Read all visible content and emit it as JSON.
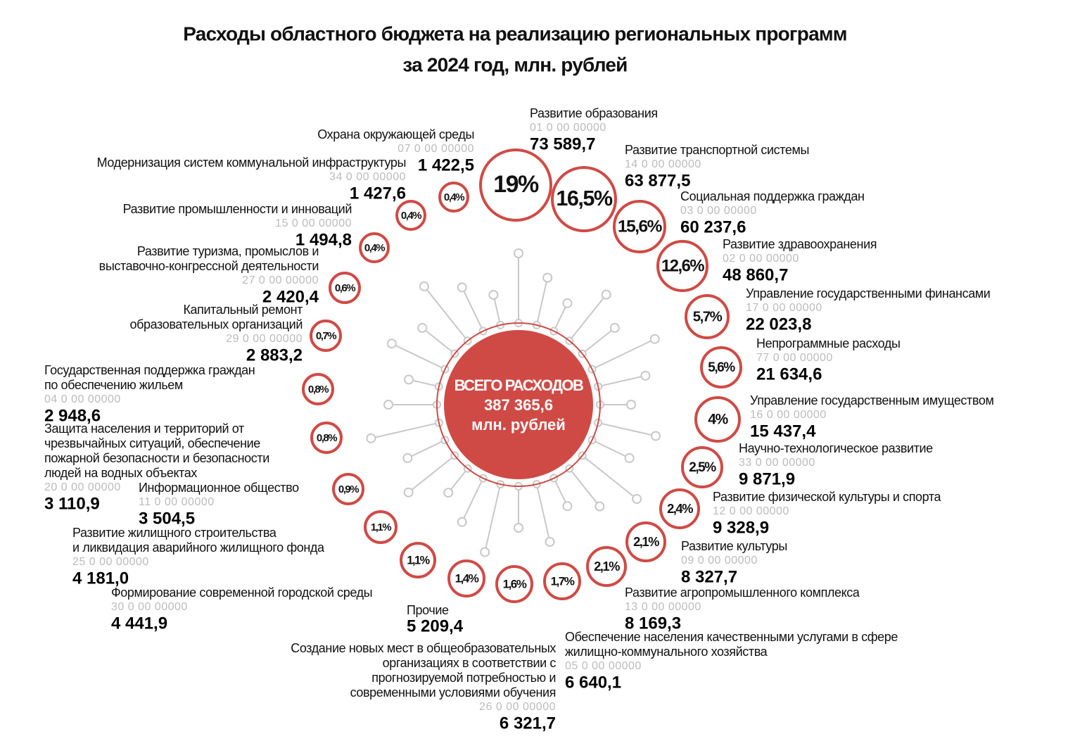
{
  "title": [
    "Расходы областного бюджета на реализацию региональных программ",
    "за 2024 год, млн. рублей"
  ],
  "total": {
    "label": "ВСЕГО РАСХОДОВ",
    "amount": "387 365,6",
    "unit": "млн. рублей"
  },
  "programs": [
    {
      "name": [
        "Развитие образования"
      ],
      "code": "01 0 00 00000",
      "amount": "73 589,7",
      "percent": "19%"
    },
    {
      "name": [
        "Развитие транспортной системы"
      ],
      "code": "14 0 00 00000",
      "amount": "63 877,5",
      "percent": "16,5%"
    },
    {
      "name": [
        "Социальная поддержка граждан"
      ],
      "code": "03 0 00 00000",
      "amount": "60 237,6",
      "percent": "15,6%"
    },
    {
      "name": [
        "Развитие здравоохранения"
      ],
      "code": "02 0 00 00000",
      "amount": "48 860,7",
      "percent": "12,6%"
    },
    {
      "name": [
        "Управление государственными финансами"
      ],
      "code": "17 0 00 00000",
      "amount": "22 023,8",
      "percent": "5,7%"
    },
    {
      "name": [
        "Непрограммные расходы"
      ],
      "code": "77 0 00 00000",
      "amount": "21 634,6",
      "percent": "5,6%"
    },
    {
      "name": [
        "Управление государственным имуществом"
      ],
      "code": "16 0 00 00000",
      "amount": "15 437,4",
      "percent": "4%"
    },
    {
      "name": [
        "Научно-технологическое развитие"
      ],
      "code": "33 0 00 00000",
      "amount": "9 871,9",
      "percent": "2,5%"
    },
    {
      "name": [
        "Развитие физической культуры и спорта"
      ],
      "code": "12 0 00 00000",
      "amount": "9 328,9",
      "percent": "2,4%"
    },
    {
      "name": [
        "Развитие культуры"
      ],
      "code": "09 0 00 00000",
      "amount": "8 327,7",
      "percent": "2,1%"
    },
    {
      "name": [
        "Развитие агропромышленного комплекса"
      ],
      "code": "13 0 00 00000",
      "amount": "8 169,3",
      "percent": "2,1%"
    },
    {
      "name": [
        "Обеспечение населения  качественными услугами в сфере",
        "жилищно-коммунального хозяйства"
      ],
      "code": "05 0 00 00000",
      "amount": "6 640,1",
      "percent": "1,7%"
    },
    {
      "name": [
        "Создание новых мест в общеобразовательных",
        "организациях  в соответствии с",
        "прогнозируемой потребностью и",
        "современными условиями обучения"
      ],
      "code": "26 0 00 00000",
      "amount": "6 321,7",
      "percent": "1,6%"
    },
    {
      "name": [
        "Прочие"
      ],
      "amount": "5 209,4",
      "percent": "1,4%"
    },
    {
      "name": [
        "Формирование современной городской среды"
      ],
      "code": "30 0 00 00000",
      "amount": "4 441,9",
      "percent": "1,1%"
    },
    {
      "name": [
        "Развитие жилищного строительства",
        "и ликвидация аварийного жилищного фонда"
      ],
      "code": "25 0 00 00000",
      "amount": "4 181,0",
      "percent": "1,1%"
    },
    {
      "name": [
        "Информационное общество"
      ],
      "code": "11 0 00 00000",
      "amount": "3 504,5",
      "percent": "0,9%"
    },
    {
      "name": [
        "Защита населения и территорий от",
        "чрезвычайных ситуаций, обеспечение",
        "пожарной безопасности и безопасности",
        "людей на водных объектах"
      ],
      "code": "20 0 00 00000",
      "amount": "3 110,9",
      "percent": "0,8%"
    },
    {
      "name": [
        "Государственная поддержка граждан",
        "по обеспечению жильем"
      ],
      "code": "04 0 00 00000",
      "amount": "2 948,6",
      "percent": "0,8%"
    },
    {
      "name": [
        "Капитальный ремонт",
        "образовательных организаций"
      ],
      "code": "29 0 00 00000",
      "amount": "2 883,2",
      "percent": "0,7%"
    },
    {
      "name": [
        "Развитие туризма, промыслов и",
        "выставочно-конгрессной деятельности"
      ],
      "code": "27 0 00 00000",
      "amount": "2 420,4",
      "percent": "0,6%"
    },
    {
      "name": [
        "Развитие промышленности и инноваций"
      ],
      "code": "15 0 00 00000",
      "amount": "1 494,8",
      "percent": "0,4%"
    },
    {
      "name": [
        "Модернизация систем коммунальной инфраструктуры"
      ],
      "code": "34 0 00 00000",
      "amount": "1 427,6",
      "percent": "0,4%"
    },
    {
      "name": [
        "Охрана окружающей среды"
      ],
      "code": "07 0 00 00000",
      "amount": "1 422,5",
      "percent": "0,4%"
    }
  ]
}
